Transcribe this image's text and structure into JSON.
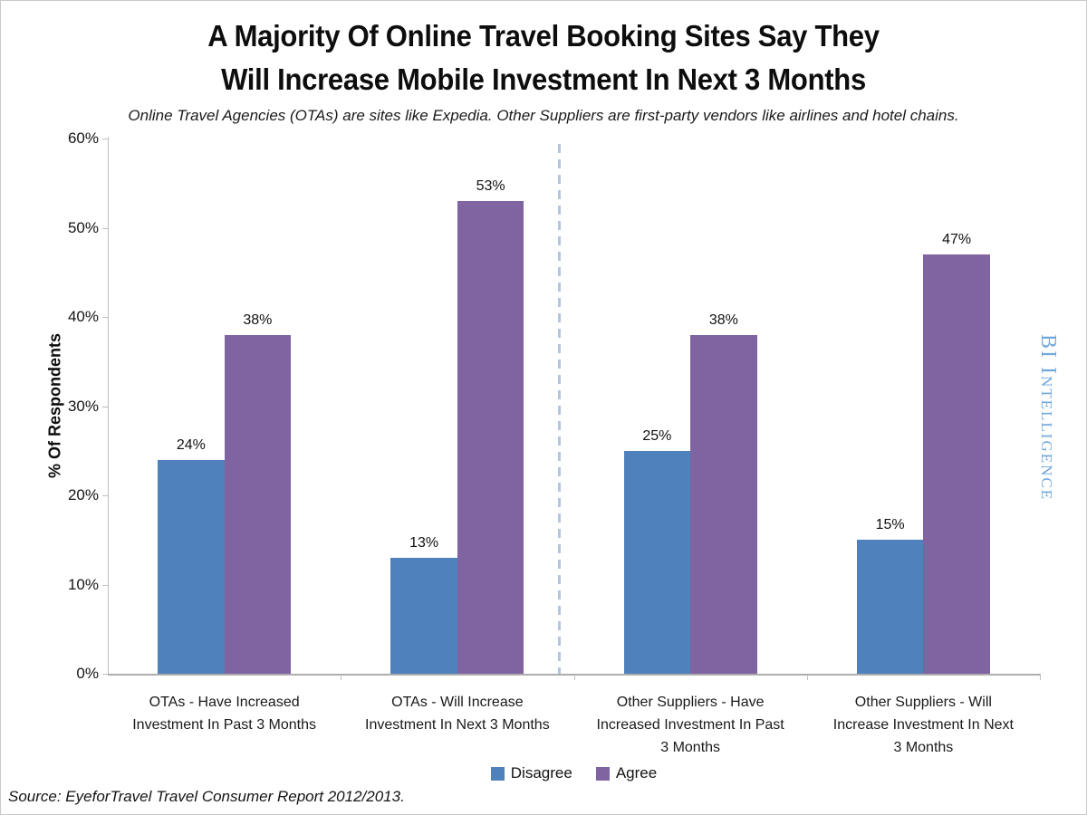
{
  "title": {
    "line1": "A Majority Of Online Travel Booking Sites Say They",
    "line2": "Will Increase Mobile Investment In Next 3 Months"
  },
  "subtitle": "Online Travel Agencies (OTAs) are sites like Expedia. Other Suppliers are first-party vendors like airlines and hotel chains.",
  "source_note": "Source: EyeforTravel Travel Consumer Report 2012/2013.",
  "watermark": {
    "text": "BI Intelligence",
    "color": "#6fa8dc"
  },
  "chart_data": {
    "type": "bar",
    "title": "A Majority Of Online Travel Booking Sites Say They Will Increase Mobile Investment In Next 3 Months",
    "xlabel": "",
    "ylabel": "% Of Respondents",
    "ylim": [
      0,
      60
    ],
    "grid": false,
    "legend_position": "bottom",
    "ytick_values": [
      0,
      10,
      20,
      30,
      40,
      50,
      60
    ],
    "ytick_labels": [
      "0%",
      "10%",
      "20%",
      "30%",
      "40%",
      "50%",
      "60%"
    ],
    "categories": [
      "OTAs - Have Increased\nInvestment In Past 3 Months",
      "OTAs - Will Increase\nInvestment In Next 3 Months",
      "Other Suppliers - Have\nIncreased Investment In Past\n3 Months",
      "Other Suppliers - Will\nIncrease Investment In Next\n3 Months"
    ],
    "series": [
      {
        "name": "Disagree",
        "color": "#4f81bd",
        "values": [
          24,
          13,
          25,
          15
        ]
      },
      {
        "name": "Agree",
        "color": "#8064a2",
        "values": [
          38,
          53,
          38,
          47
        ]
      }
    ],
    "data_label_suffix": "%",
    "data_labels": {
      "Disagree": [
        "24%",
        "13%",
        "25%",
        "15%"
      ],
      "Agree": [
        "38%",
        "53%",
        "38%",
        "47%"
      ]
    },
    "divider": {
      "after_category_index": 1,
      "style": "dashed",
      "color": "#b3c6e0"
    },
    "axis_color": "#bfbfbf"
  }
}
